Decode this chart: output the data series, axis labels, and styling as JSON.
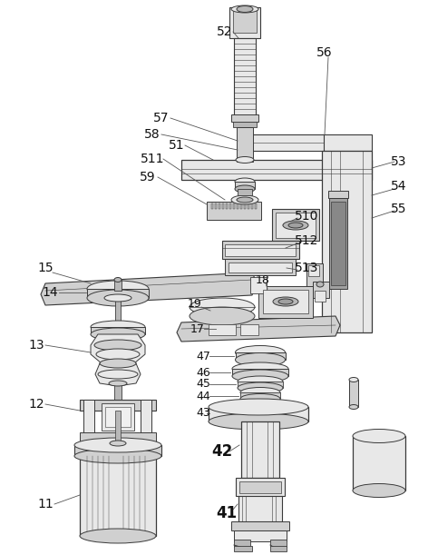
{
  "bg_color": "#ffffff",
  "lc": "#3a3a3a",
  "fc_light": "#e8e8e8",
  "fc_mid": "#d0d0d0",
  "fc_dark": "#b8b8b8",
  "fc_darker": "#a0a0a0"
}
